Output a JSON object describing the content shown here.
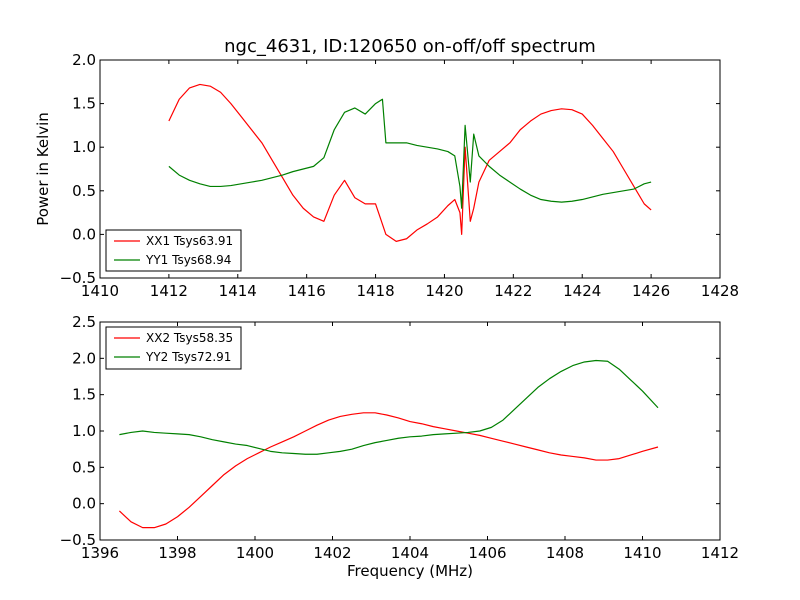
{
  "chart_data": [
    {
      "type": "line",
      "title": "ngc_4631, ID:120650 on-off/off spectrum",
      "xlabel": "",
      "ylabel": "Power in Kelvin",
      "xlim": [
        1410,
        1428
      ],
      "ylim": [
        -0.5,
        2.0
      ],
      "xticks": [
        1410,
        1412,
        1414,
        1416,
        1418,
        1420,
        1422,
        1424,
        1426,
        1428
      ],
      "yticks": [
        -0.5,
        0.0,
        0.5,
        1.0,
        1.5,
        2.0
      ],
      "legend_position": "lower-left",
      "series": [
        {
          "name": "XX1 Tsys63.91",
          "color": "#ff0000",
          "x": [
            1412.0,
            1412.3,
            1412.6,
            1412.9,
            1413.2,
            1413.5,
            1413.8,
            1414.1,
            1414.4,
            1414.7,
            1415.0,
            1415.3,
            1415.6,
            1415.9,
            1416.2,
            1416.5,
            1416.8,
            1417.1,
            1417.4,
            1417.7,
            1418.0,
            1418.3,
            1418.6,
            1418.9,
            1419.2,
            1419.5,
            1419.8,
            1420.1,
            1420.3,
            1420.45,
            1420.5,
            1420.6,
            1420.75,
            1420.85,
            1421.0,
            1421.3,
            1421.6,
            1421.9,
            1422.2,
            1422.5,
            1422.8,
            1423.1,
            1423.4,
            1423.7,
            1424.0,
            1424.3,
            1424.6,
            1424.9,
            1425.2,
            1425.5,
            1425.8,
            1426.0
          ],
          "y": [
            1.3,
            1.55,
            1.68,
            1.72,
            1.7,
            1.63,
            1.5,
            1.35,
            1.2,
            1.05,
            0.85,
            0.65,
            0.45,
            0.3,
            0.2,
            0.15,
            0.45,
            0.62,
            0.42,
            0.35,
            0.35,
            0.0,
            -0.08,
            -0.05,
            0.05,
            0.12,
            0.2,
            0.33,
            0.4,
            0.25,
            0.0,
            1.0,
            0.15,
            0.3,
            0.6,
            0.85,
            0.95,
            1.05,
            1.2,
            1.3,
            1.38,
            1.42,
            1.44,
            1.43,
            1.38,
            1.25,
            1.1,
            0.95,
            0.75,
            0.55,
            0.35,
            0.28
          ]
        },
        {
          "name": "YY1 Tsys68.94",
          "color": "#008000",
          "x": [
            1412.0,
            1412.3,
            1412.6,
            1412.9,
            1413.2,
            1413.5,
            1413.8,
            1414.1,
            1414.4,
            1414.7,
            1415.0,
            1415.3,
            1415.6,
            1415.9,
            1416.2,
            1416.5,
            1416.8,
            1417.1,
            1417.4,
            1417.7,
            1418.0,
            1418.2,
            1418.3,
            1418.6,
            1418.9,
            1419.2,
            1419.5,
            1419.8,
            1420.1,
            1420.3,
            1420.45,
            1420.5,
            1420.6,
            1420.75,
            1420.85,
            1421.0,
            1421.3,
            1421.6,
            1421.9,
            1422.2,
            1422.5,
            1422.8,
            1423.1,
            1423.4,
            1423.7,
            1424.0,
            1424.3,
            1424.6,
            1424.9,
            1425.2,
            1425.5,
            1425.8,
            1426.0
          ],
          "y": [
            0.78,
            0.68,
            0.62,
            0.58,
            0.55,
            0.55,
            0.56,
            0.58,
            0.6,
            0.62,
            0.65,
            0.68,
            0.72,
            0.75,
            0.78,
            0.88,
            1.2,
            1.4,
            1.45,
            1.38,
            1.5,
            1.55,
            1.05,
            1.05,
            1.05,
            1.02,
            1.0,
            0.98,
            0.95,
            0.9,
            0.55,
            0.3,
            1.25,
            0.6,
            1.15,
            0.9,
            0.78,
            0.68,
            0.6,
            0.52,
            0.45,
            0.4,
            0.38,
            0.37,
            0.38,
            0.4,
            0.43,
            0.46,
            0.48,
            0.5,
            0.52,
            0.58,
            0.6
          ]
        }
      ]
    },
    {
      "type": "line",
      "title": "",
      "xlabel": "Frequency (MHz)",
      "ylabel": "",
      "xlim": [
        1396,
        1412
      ],
      "ylim": [
        -0.5,
        2.5
      ],
      "xticks": [
        1396,
        1398,
        1400,
        1402,
        1404,
        1406,
        1408,
        1410,
        1412
      ],
      "yticks": [
        -0.5,
        0.0,
        0.5,
        1.0,
        1.5,
        2.0,
        2.5
      ],
      "legend_position": "upper-left",
      "series": [
        {
          "name": "XX2 Tsys58.35",
          "color": "#ff0000",
          "x": [
            1396.5,
            1396.8,
            1397.1,
            1397.4,
            1397.7,
            1398.0,
            1398.3,
            1398.6,
            1398.9,
            1399.2,
            1399.5,
            1399.8,
            1400.1,
            1400.4,
            1400.7,
            1401.0,
            1401.3,
            1401.6,
            1401.9,
            1402.2,
            1402.5,
            1402.8,
            1403.1,
            1403.4,
            1403.7,
            1404.0,
            1404.3,
            1404.6,
            1404.9,
            1405.2,
            1405.5,
            1405.8,
            1406.1,
            1406.4,
            1406.7,
            1407.0,
            1407.3,
            1407.6,
            1407.9,
            1408.2,
            1408.5,
            1408.8,
            1409.1,
            1409.4,
            1409.7,
            1410.0,
            1410.4
          ],
          "y": [
            -0.1,
            -0.25,
            -0.33,
            -0.33,
            -0.28,
            -0.18,
            -0.05,
            0.1,
            0.25,
            0.4,
            0.52,
            0.62,
            0.7,
            0.78,
            0.85,
            0.92,
            1.0,
            1.08,
            1.15,
            1.2,
            1.23,
            1.25,
            1.25,
            1.22,
            1.18,
            1.13,
            1.1,
            1.06,
            1.03,
            1.0,
            0.97,
            0.94,
            0.9,
            0.86,
            0.82,
            0.78,
            0.74,
            0.7,
            0.67,
            0.65,
            0.63,
            0.6,
            0.6,
            0.62,
            0.67,
            0.72,
            0.78
          ]
        },
        {
          "name": "YY2 Tsys72.91",
          "color": "#008000",
          "x": [
            1396.5,
            1396.8,
            1397.1,
            1397.4,
            1397.7,
            1398.0,
            1398.3,
            1398.6,
            1398.9,
            1399.2,
            1399.5,
            1399.8,
            1400.1,
            1400.4,
            1400.7,
            1401.0,
            1401.3,
            1401.6,
            1401.9,
            1402.2,
            1402.5,
            1402.8,
            1403.1,
            1403.4,
            1403.7,
            1404.0,
            1404.3,
            1404.6,
            1404.9,
            1405.2,
            1405.5,
            1405.8,
            1406.1,
            1406.4,
            1406.7,
            1407.0,
            1407.3,
            1407.6,
            1407.9,
            1408.2,
            1408.5,
            1408.8,
            1409.1,
            1409.4,
            1409.7,
            1410.0,
            1410.4
          ],
          "y": [
            0.95,
            0.98,
            1.0,
            0.98,
            0.97,
            0.96,
            0.95,
            0.92,
            0.88,
            0.85,
            0.82,
            0.8,
            0.76,
            0.72,
            0.7,
            0.69,
            0.68,
            0.68,
            0.7,
            0.72,
            0.75,
            0.8,
            0.84,
            0.87,
            0.9,
            0.92,
            0.93,
            0.95,
            0.96,
            0.97,
            0.98,
            1.0,
            1.05,
            1.15,
            1.3,
            1.45,
            1.6,
            1.72,
            1.82,
            1.9,
            1.95,
            1.97,
            1.96,
            1.85,
            1.7,
            1.55,
            1.32
          ]
        }
      ]
    }
  ]
}
